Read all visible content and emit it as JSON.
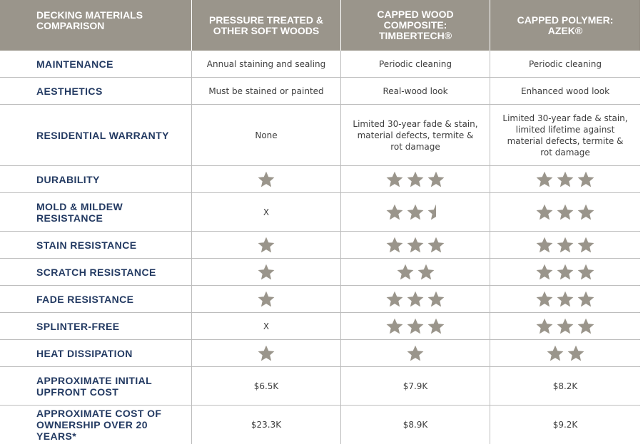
{
  "colors": {
    "header_bg": "#9a958b",
    "label_text": "#233a62",
    "star_fill": "#9a958b",
    "body_text": "#3d3d3d",
    "divider": "#bdbdbd"
  },
  "header": {
    "col0": "DECKING MATERIALS\nCOMPARISON",
    "col1": "PRESSURE TREATED &\nOTHER SOFT WOODS",
    "col2": "CAPPED WOOD\nCOMPOSITE:\nTIMBERTECH®",
    "col3": "CAPPED POLYMER:\nAZEK®"
  },
  "rows": [
    {
      "label": "MAINTENANCE",
      "type": "text",
      "values": [
        "Annual staining and sealing",
        "Periodic cleaning",
        "Periodic cleaning"
      ]
    },
    {
      "label": "AESTHETICS",
      "type": "text",
      "values": [
        "Must be stained or painted",
        "Real-wood look",
        "Enhanced wood look"
      ]
    },
    {
      "label": "RESIDENTIAL WARRANTY",
      "type": "text",
      "values": [
        "None",
        "Limited 30-year fade & stain,\nmaterial defects, termite &\nrot damage",
        "Limited 30-year fade & stain,\nlimited lifetime against\nmaterial defects, termite &\nrot damage"
      ]
    },
    {
      "label": "DURABILITY",
      "type": "stars",
      "values": [
        1,
        3,
        3
      ]
    },
    {
      "label": "MOLD & MILDEW\nRESISTANCE",
      "type": "stars",
      "values": [
        "X",
        2.5,
        3
      ]
    },
    {
      "label": "STAIN RESISTANCE",
      "type": "stars",
      "values": [
        1,
        3,
        3
      ]
    },
    {
      "label": "SCRATCH RESISTANCE",
      "type": "stars",
      "values": [
        1,
        2,
        3
      ]
    },
    {
      "label": "FADE RESISTANCE",
      "type": "stars",
      "values": [
        1,
        3,
        3
      ]
    },
    {
      "label": "SPLINTER-FREE",
      "type": "stars",
      "values": [
        "X",
        3,
        3
      ]
    },
    {
      "label": "HEAT DISSIPATION",
      "type": "stars",
      "values": [
        1,
        1,
        2
      ]
    },
    {
      "label": "APPROXIMATE INITIAL\nUPFRONT COST",
      "type": "text",
      "values": [
        "$6.5K",
        "$7.9K",
        "$8.2K"
      ]
    },
    {
      "label": "APPROXIMATE COST OF\nOWNERSHIP OVER 20 YEARS*",
      "type": "text",
      "values": [
        "$23.3K",
        "$8.9K",
        "$9.2K"
      ]
    }
  ]
}
